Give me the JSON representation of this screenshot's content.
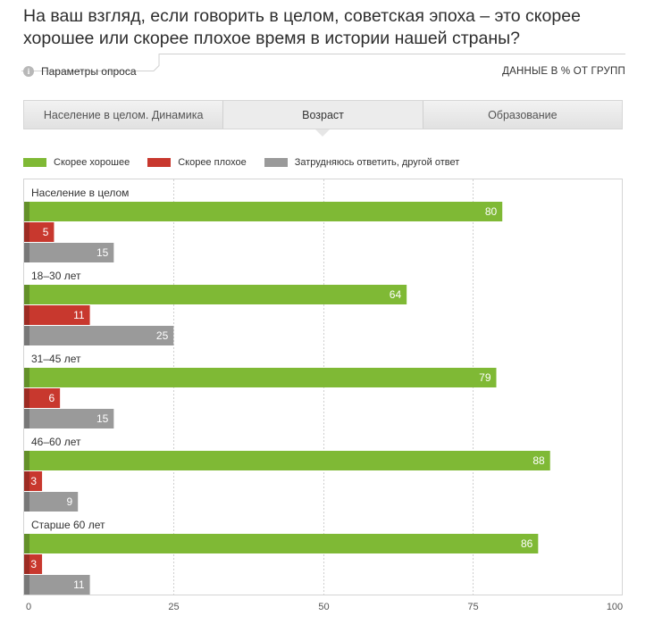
{
  "title": "На ваш взгляд, если говорить в целом, советская эпоха – это скорее хорошее или скорее плохое время в истории нашей страны?",
  "params_label": "Параметры опроса",
  "data_label": "ДАННЫЕ В % ОТ ГРУПП",
  "tabs": [
    {
      "label": "Население в целом. Динамика",
      "active": false
    },
    {
      "label": "Возраст",
      "active": true
    },
    {
      "label": "Образование",
      "active": false
    }
  ],
  "colors": {
    "good": "#7fb935",
    "bad": "#c8382e",
    "neutral": "#9a9a9a"
  },
  "chart_data": {
    "type": "bar",
    "orientation": "horizontal",
    "categories": [
      "Население в целом",
      "18–30 лет",
      "31–45 лет",
      "46–60 лет",
      "Старше 60 лет"
    ],
    "series": [
      {
        "name": "Скорее хорошее",
        "values": [
          80,
          64,
          79,
          88,
          86
        ]
      },
      {
        "name": "Скорее плохое",
        "values": [
          5,
          11,
          6,
          3,
          3
        ]
      },
      {
        "name": "Затрудняюсь ответить, другой ответ",
        "values": [
          15,
          25,
          15,
          9,
          11
        ]
      }
    ],
    "xlim": [
      0,
      100
    ],
    "xticks": [
      0,
      25,
      50,
      75,
      100
    ],
    "grid": true,
    "legend_position": "top-left"
  }
}
